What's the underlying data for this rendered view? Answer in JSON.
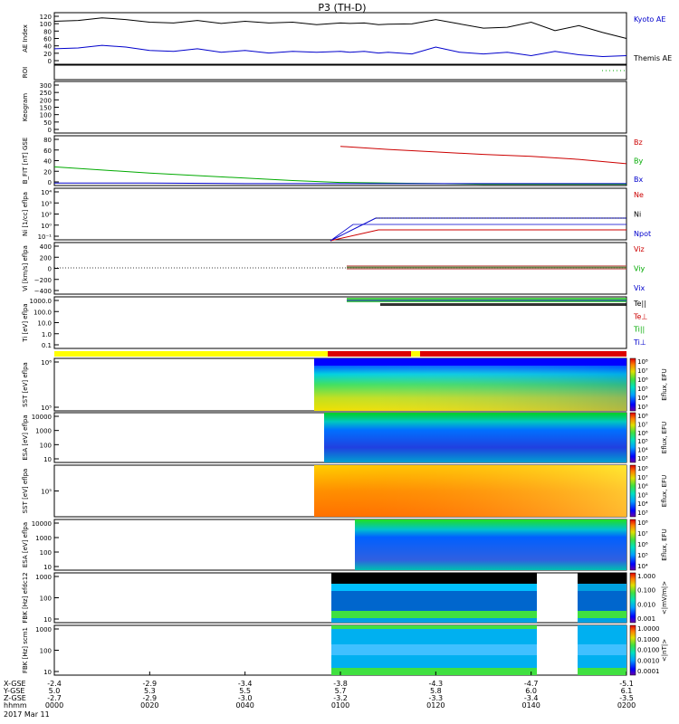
{
  "title": "P3 (TH-D)",
  "date_label": "2017 Mar 11",
  "panels": [
    {
      "id": "ae",
      "ylabel": "AE Index",
      "yticks": [
        "120",
        "100",
        "80",
        "60",
        "40",
        "20",
        "0"
      ],
      "legend": [
        {
          "text": "Kyoto AE",
          "color": "#0000cc"
        },
        {
          "text": "Themis AE",
          "color": "#000000"
        }
      ]
    },
    {
      "id": "roi",
      "ylabel": "ROI",
      "yticks": [],
      "legend": []
    },
    {
      "id": "keogram",
      "ylabel": "Keogram",
      "yticks": [
        "300",
        "250",
        "200",
        "150",
        "100",
        "50",
        "0"
      ],
      "legend": []
    },
    {
      "id": "bfit",
      "ylabel": "B_FIT [nT] GSE",
      "yticks": [
        "80",
        "60",
        "40",
        "20",
        "0"
      ],
      "legend": [
        {
          "text": "Bz",
          "color": "#cc0000"
        },
        {
          "text": "By",
          "color": "#00aa00"
        },
        {
          "text": "Bx",
          "color": "#0000cc"
        }
      ]
    },
    {
      "id": "ni",
      "ylabel": "Ni [1/cc] eflpa",
      "yticks": [
        "10⁴",
        "10³",
        "10²",
        "10⁰",
        "10⁻¹"
      ],
      "legend": [
        {
          "text": "Ne",
          "color": "#cc0000"
        },
        {
          "text": "Ni",
          "color": "#000000"
        },
        {
          "text": "Npot",
          "color": "#0000cc"
        }
      ]
    },
    {
      "id": "vi",
      "ylabel": "Vi [km/s] eflpa",
      "yticks": [
        "400",
        "200",
        "0",
        "−200",
        "−400"
      ],
      "legend": [
        {
          "text": "Viz",
          "color": "#cc0000"
        },
        {
          "text": "Viy",
          "color": "#00aa00"
        },
        {
          "text": "Vix",
          "color": "#0000cc"
        }
      ]
    },
    {
      "id": "ti",
      "ylabel": "Ti [eV] eflpa",
      "yticks": [
        "1000.0",
        "100.0",
        "10.0",
        "1.0",
        "0.1"
      ],
      "legend": [
        {
          "text": "Te||",
          "color": "#000000"
        },
        {
          "text": "Te⊥",
          "color": "#cc0000"
        },
        {
          "text": "Ti||",
          "color": "#00aa00"
        },
        {
          "text": "Ti⊥",
          "color": "#0000cc"
        }
      ]
    },
    {
      "id": "sst1",
      "ylabel": "SST [eV] eflpa",
      "yticks": [
        "10⁶",
        "10⁵"
      ],
      "legend": [],
      "cbar_label": "Eflux, EFU",
      "cbar_ticks": [
        "10⁸",
        "10⁷",
        "10⁶",
        "10⁵",
        "10⁴",
        "10³"
      ]
    },
    {
      "id": "esa1",
      "ylabel": "ESA [eV] eflpa",
      "yticks": [
        "10000",
        "1000",
        "100",
        "10"
      ],
      "legend": [],
      "cbar_label": "Eflux, EFU",
      "cbar_ticks": [
        "10⁸",
        "10⁷",
        "10⁶",
        "10⁵",
        "10⁴",
        "10³"
      ]
    },
    {
      "id": "sst2",
      "ylabel": "SST [eV] eflpa",
      "yticks": [
        "10⁵"
      ],
      "legend": [],
      "cbar_label": "Eflux, EFU",
      "cbar_ticks": [
        "10⁸",
        "10⁷",
        "10⁶",
        "10⁵",
        "10⁴",
        "10³"
      ]
    },
    {
      "id": "esa2",
      "ylabel": "ESA [eV] eflpa",
      "yticks": [
        "10000",
        "1000",
        "100",
        "10"
      ],
      "legend": [],
      "cbar_label": "Eflux, EFU",
      "cbar_ticks": [
        "10⁸",
        "10⁷",
        "10⁶",
        "10⁵",
        "10⁴"
      ]
    },
    {
      "id": "fbk1",
      "ylabel": "FBK [Hz] efdc12",
      "yticks": [
        "1000",
        "100",
        "10"
      ],
      "legend": [],
      "cbar_label": "<|mV/m|>",
      "cbar_ticks": [
        "1.000",
        "0.100",
        "0.010",
        "0.001"
      ]
    },
    {
      "id": "fbk2",
      "ylabel": "FBK [Hz] scm1",
      "yticks": [
        "1000",
        "100",
        "10"
      ],
      "legend": [],
      "cbar_label": "<|nT|>",
      "cbar_ticks": [
        "1.0000",
        "0.1000",
        "0.0100",
        "0.0010",
        "0.0001"
      ]
    }
  ],
  "xaxis": {
    "row_labels": [
      "X-GSE",
      "Y-GSE",
      "Z-GSE",
      "hhmm"
    ],
    "ticks": [
      {
        "x": "-2.4",
        "y": "5.0",
        "z": "-2.7",
        "t": "0000"
      },
      {
        "x": "-2.9",
        "y": "5.3",
        "z": "-2.9",
        "t": "0020"
      },
      {
        "x": "-3.4",
        "y": "5.5",
        "z": "-3.0",
        "t": "0040"
      },
      {
        "x": "-3.8",
        "y": "5.7",
        "z": "-3.2",
        "t": "0100"
      },
      {
        "x": "-4.3",
        "y": "5.8",
        "z": "-3.3",
        "t": "0120"
      },
      {
        "x": "-4.7",
        "y": "6.0",
        "z": "-3.4",
        "t": "0140"
      },
      {
        "x": "-5.1",
        "y": "6.1",
        "z": "-3.5",
        "t": "0200"
      }
    ]
  },
  "chart_data": [
    {
      "type": "line",
      "panel": "AE Index",
      "x": [
        0,
        5,
        10,
        15,
        20,
        25,
        30,
        35,
        40,
        45,
        50,
        55,
        60,
        62,
        65,
        68,
        70,
        75,
        80,
        85,
        90,
        95,
        100,
        105,
        110,
        115,
        120
      ],
      "series": [
        {
          "name": "Themis AE",
          "color": "#000000",
          "values": [
            100,
            102,
            108,
            104,
            98,
            96,
            102,
            95,
            100,
            96,
            98,
            92,
            96,
            95,
            96,
            92,
            93,
            94,
            104,
            94,
            84,
            86,
            98,
            78,
            90,
            74,
            60
          ]
        },
        {
          "name": "Kyoto AE",
          "color": "#0000cc",
          "values": [
            36,
            38,
            44,
            40,
            32,
            30,
            36,
            28,
            32,
            26,
            30,
            28,
            30,
            28,
            30,
            26,
            28,
            24,
            40,
            28,
            24,
            28,
            20,
            30,
            22,
            18,
            20
          ]
        }
      ],
      "ylim": [
        0,
        120
      ],
      "xlabel": "hhmm"
    },
    {
      "type": "line",
      "panel": "B_FIT",
      "x": [
        0,
        20,
        40,
        50,
        60,
        70,
        80,
        90,
        100,
        110,
        120
      ],
      "series": [
        {
          "name": "Bz",
          "color": "#cc0000",
          "values": [
            null,
            null,
            null,
            null,
            63,
            58,
            54,
            50,
            47,
            42,
            35
          ]
        },
        {
          "name": "By",
          "color": "#00aa00",
          "values": [
            30,
            20,
            12,
            8,
            5,
            4,
            3,
            2,
            2,
            2,
            2
          ]
        },
        {
          "name": "Bx",
          "color": "#0000cc",
          "values": [
            4,
            4,
            3,
            3,
            3,
            3,
            3,
            3,
            3,
            3,
            3
          ]
        }
      ],
      "ylim": [
        0,
        80
      ]
    }
  ],
  "colors": {
    "yellow": "#ffff00",
    "red": "#dd0000",
    "blue": "#0000cc",
    "green": "#00aa00",
    "black": "#000000"
  }
}
